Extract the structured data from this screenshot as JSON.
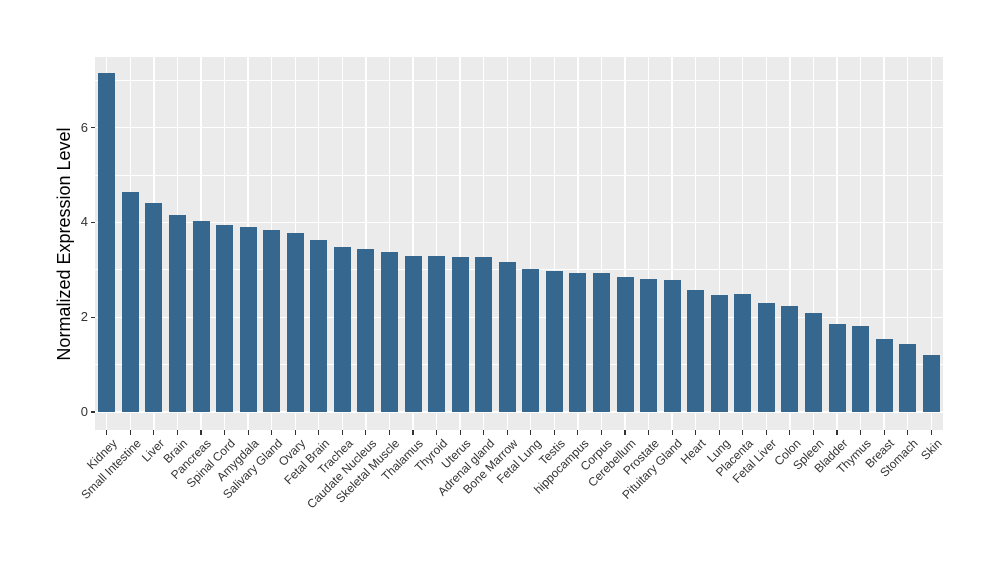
{
  "chart_data": {
    "type": "bar",
    "title": "",
    "xlabel": "",
    "ylabel": "Normalized Expression Level",
    "categories": [
      "Kidney",
      "Small Intestine",
      "Liver",
      "Brain",
      "Pancreas",
      "Spinal Cord",
      "Amygdala",
      "Salivary Gland",
      "Ovary",
      "Fetal Brain",
      "Trachea",
      "Caudate Nucleus",
      "Skeletal Muscle",
      "Thalamus",
      "Thyroid",
      "Uterus",
      "Adrenal gland",
      "Bone Marrow",
      "Fetal Lung",
      "Testis",
      "hippocampus",
      "Corpus",
      "Cerebellum",
      "Prostate",
      "Pituitary Gland",
      "Heart",
      "Lung",
      "Placenta",
      "Fetal Liver",
      "Colon",
      "Spleen",
      "Bladder",
      "Thymus",
      "Breast",
      "Stomach",
      "Skin"
    ],
    "values": [
      7.15,
      4.64,
      4.4,
      4.15,
      4.02,
      3.95,
      3.9,
      3.83,
      3.78,
      3.62,
      3.49,
      3.44,
      3.38,
      3.3,
      3.3,
      3.28,
      3.28,
      3.17,
      3.01,
      2.97,
      2.94,
      2.94,
      2.84,
      2.81,
      2.79,
      2.58,
      2.47,
      2.48,
      2.29,
      2.24,
      2.08,
      1.85,
      1.81,
      1.55,
      1.43,
      1.2
    ],
    "yticks": [
      0,
      2,
      4,
      6
    ],
    "ytick_labels": [
      "0",
      "2",
      "4",
      "6"
    ],
    "yminor": [
      1,
      3,
      5,
      7
    ],
    "ylim": [
      -0.38,
      7.49
    ],
    "grid": "white major+minor horizontal, white vertical at each category",
    "legend": "none",
    "colors": {
      "bar": "#36688F",
      "panel_bg": "#EBEBEB",
      "gridline": "#FFFFFF",
      "tick_mark": "#333333",
      "tick_text": "#333333",
      "axis_title": "#000000",
      "background": "#FFFFFF"
    }
  }
}
